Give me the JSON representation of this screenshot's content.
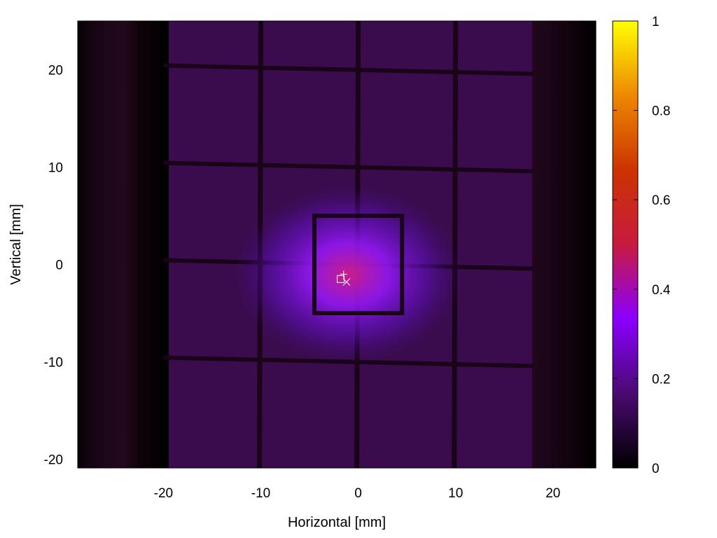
{
  "chart_data": {
    "type": "heatmap",
    "title": "",
    "xlabel": "Horizontal [mm]",
    "ylabel": "Vertical [mm]",
    "xlim": [
      -28.8,
      24.4
    ],
    "ylim": [
      -20.9,
      25
    ],
    "xticks": [
      -20,
      -10,
      0,
      10,
      20
    ],
    "yticks": [
      -20,
      -10,
      0,
      10,
      20
    ],
    "colorbar": {
      "range": [
        0,
        1
      ],
      "ticks": [
        0,
        0.2,
        0.4,
        0.6,
        0.8,
        1
      ],
      "tick_labels": [
        "0",
        "0.2",
        "0.4",
        "0.6",
        "0.8",
        "1"
      ],
      "colormap": [
        "#000000",
        "#4a0a70",
        "#8a00ff",
        "#c81a40",
        "#cc3300",
        "#ee8800",
        "#ffff00"
      ]
    },
    "background_intensity": 0.07,
    "grid_wires": {
      "vertical_mm": [
        -10,
        0,
        10
      ],
      "horizontal_mm": [
        20,
        10,
        0,
        -10
      ],
      "inner_square_mm": {
        "x": [
          -4.5,
          4.5
        ],
        "y": [
          -5,
          5
        ]
      }
    },
    "beam_spot": {
      "center_mm": [
        -1,
        -1
      ],
      "peak_intensity": 0.45,
      "sigma_mm": [
        4.5,
        3.5
      ]
    },
    "markers": [
      {
        "symbol": "plus",
        "x": -1.5,
        "y": -1
      },
      {
        "symbol": "square",
        "x": -1.8,
        "y": -1.5
      },
      {
        "symbol": "cross",
        "x": -1.2,
        "y": -1.8
      }
    ]
  }
}
